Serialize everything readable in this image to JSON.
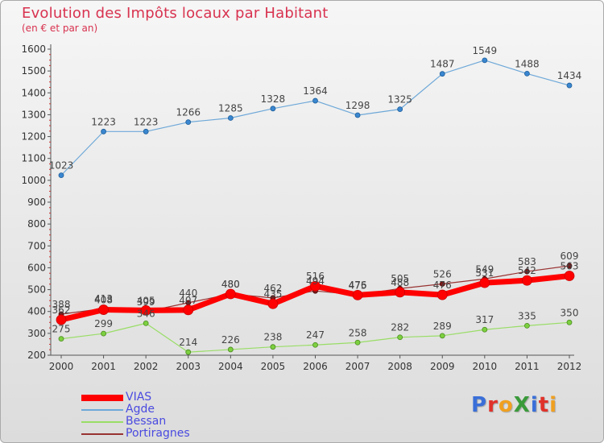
{
  "title": "Evolution des Impôts locaux par Habitant",
  "subtitle": "(en € et par an)",
  "logo": {
    "text": "ProXiti",
    "colors": [
      "#3a6fd8",
      "#e0322a",
      "#f0a020",
      "#3a9a3a",
      "#3a6fd8",
      "#e0322a",
      "#f0a020"
    ]
  },
  "chart_data": {
    "type": "line",
    "x": [
      "2000",
      "2001",
      "2002",
      "2003",
      "2004",
      "2005",
      "2006",
      "2007",
      "2008",
      "2009",
      "2010",
      "2011",
      "2012"
    ],
    "ylim": [
      200,
      1600
    ],
    "yticks": [
      200,
      300,
      400,
      500,
      600,
      700,
      800,
      900,
      1000,
      1100,
      1200,
      1300,
      1400,
      1500,
      1600
    ],
    "grid": false,
    "legend_position": "bottom-left",
    "series": [
      {
        "name": "VIAS",
        "color": "#ff0000",
        "values": [
          362,
          408,
          405,
          407,
          480,
          435,
          516,
          475,
          488,
          476,
          531,
          542,
          563
        ]
      },
      {
        "name": "Agde",
        "color": "#6ea8d8",
        "values": [
          1023,
          1223,
          1223,
          1266,
          1285,
          1328,
          1364,
          1298,
          1325,
          1487,
          1549,
          1488,
          1434
        ]
      },
      {
        "name": "Bessan",
        "color": "#99dd66",
        "values": [
          275,
          299,
          346,
          214,
          226,
          238,
          247,
          258,
          282,
          289,
          317,
          335,
          350
        ]
      },
      {
        "name": "Portiragnes",
        "color": "#993333",
        "values": [
          388,
          413,
          399,
          440,
          480,
          462,
          494,
          476,
          505,
          526,
          549,
          583,
          609
        ]
      }
    ]
  }
}
